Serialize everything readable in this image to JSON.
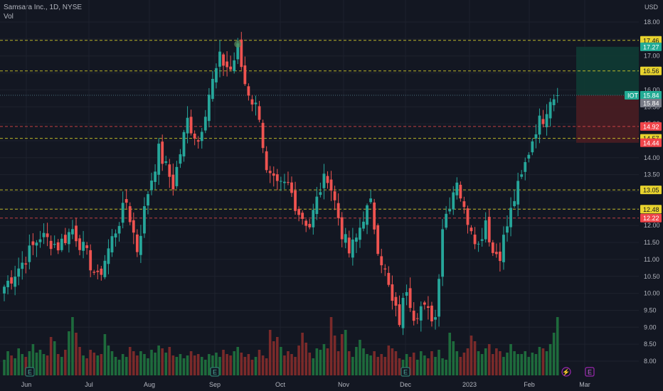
{
  "header": {
    "title": "Samsara Inc., 1D, NYSE",
    "vol_label": "Vol",
    "currency": "USD"
  },
  "colors": {
    "background": "#131722",
    "up": "#26a69a",
    "down": "#ef5350",
    "vol_up": "#1e6b3c",
    "vol_down": "#7a2a2a",
    "level_yellow": "#d8d028",
    "level_red": "#e04848",
    "tag_yellow": "#e8d32e",
    "tag_red": "#f0454a",
    "tag_green": "#22ab94",
    "tag_gray": "#787b86",
    "target_zone": "#0f3b34",
    "stop_zone": "#4a1d22"
  },
  "chart_data": {
    "type": "candlestick",
    "title": "Samsara Inc., 1D, NYSE",
    "symbol": "IOT",
    "last_price": 15.84,
    "ylim": [
      7.8,
      18.35
    ],
    "y_ticks": [
      "18.00",
      "17.50",
      "17.00",
      "16.50",
      "16.00",
      "15.50",
      "15.00",
      "14.50",
      "14.00",
      "13.50",
      "13.00",
      "12.50",
      "12.00",
      "11.50",
      "11.00",
      "10.50",
      "10.00",
      "9.50",
      "9.00",
      "8.50",
      "8.00"
    ],
    "x_ticks": [
      "Jun",
      "Jul",
      "Aug",
      "Sep",
      "Oct",
      "Nov",
      "Dec",
      "2023",
      "Feb",
      "Mar"
    ],
    "horizontal_levels": [
      {
        "value": 17.46,
        "label": "17.46",
        "style": "yellow"
      },
      {
        "value": 16.56,
        "label": "16.56",
        "style": "yellow"
      },
      {
        "value": 14.92,
        "label": "14.92",
        "style": "red"
      },
      {
        "value": 14.57,
        "label": "14.57",
        "style": "yellow"
      },
      {
        "value": 13.05,
        "label": "13.05",
        "style": "yellow"
      },
      {
        "value": 12.48,
        "label": "12.48",
        "style": "yellow"
      },
      {
        "value": 12.22,
        "label": "12.22",
        "style": "red"
      }
    ],
    "price_tags": [
      {
        "value": 17.27,
        "label": "17.27",
        "style": "green"
      },
      {
        "value": 15.84,
        "label": "15.84",
        "style": "green",
        "prefix": "IOT"
      },
      {
        "value": 15.84,
        "label": "15.84",
        "style": "gray"
      },
      {
        "value": 14.44,
        "label": "14.44",
        "style": "red"
      }
    ],
    "position": {
      "entry": 15.84,
      "target": 17.27,
      "stop": 14.44
    },
    "control_points": [
      [
        0,
        10.2
      ],
      [
        5,
        10.9
      ],
      [
        10,
        11.7
      ],
      [
        15,
        11.4
      ],
      [
        19,
        11.9
      ],
      [
        23,
        11.1
      ],
      [
        26,
        10.4
      ],
      [
        30,
        11.6
      ],
      [
        34,
        12.7
      ],
      [
        37,
        11.3
      ],
      [
        40,
        13.0
      ],
      [
        43,
        14.2
      ],
      [
        47,
        13.2
      ],
      [
        51,
        15.1
      ],
      [
        54,
        14.5
      ],
      [
        57,
        15.9
      ],
      [
        60,
        16.9
      ],
      [
        63,
        16.6
      ],
      [
        65,
        17.2
      ],
      [
        67,
        16.2
      ],
      [
        69,
        15.7
      ],
      [
        71,
        15.3
      ],
      [
        73,
        13.5
      ],
      [
        76,
        13.1
      ],
      [
        79,
        13.2
      ],
      [
        82,
        12.4
      ],
      [
        85,
        12.0
      ],
      [
        88,
        13.1
      ],
      [
        90,
        13.5
      ],
      [
        92,
        12.7
      ],
      [
        94,
        11.8
      ],
      [
        96,
        11.2
      ],
      [
        98,
        11.6
      ],
      [
        100,
        12.3
      ],
      [
        102,
        12.6
      ],
      [
        104,
        11.4
      ],
      [
        106,
        10.6
      ],
      [
        108,
        9.7
      ],
      [
        110,
        9.2
      ],
      [
        112,
        10.2
      ],
      [
        114,
        9.4
      ],
      [
        116,
        9.6
      ],
      [
        118,
        9.4
      ],
      [
        120,
        9.3
      ],
      [
        122,
        12.0
      ],
      [
        124,
        12.7
      ],
      [
        126,
        13.4
      ],
      [
        128,
        12.4
      ],
      [
        130,
        12.0
      ],
      [
        132,
        11.4
      ],
      [
        134,
        12.2
      ],
      [
        136,
        11.2
      ],
      [
        138,
        11.2
      ],
      [
        140,
        12.0
      ],
      [
        142,
        12.8
      ],
      [
        144,
        13.4
      ],
      [
        146,
        14.2
      ],
      [
        148,
        14.9
      ],
      [
        150,
        15.2
      ],
      [
        152,
        15.8
      ],
      [
        154,
        15.84
      ]
    ],
    "volume_heights": [
      22,
      34,
      28,
      24,
      38,
      30,
      26,
      34,
      44,
      32,
      36,
      30,
      28,
      54,
      48,
      30,
      26,
      36,
      62,
      82,
      60,
      40,
      28,
      24,
      36,
      32,
      28,
      30,
      58,
      42,
      34,
      26,
      22,
      30,
      26,
      40,
      34,
      28,
      34,
      30,
      24,
      36,
      32,
      42,
      38,
      32,
      40,
      28,
      26,
      30,
      24,
      28,
      34,
      28,
      30,
      26,
      22,
      30,
      28,
      32,
      26,
      36,
      30,
      28,
      34,
      40,
      32,
      26,
      30,
      22,
      26,
      36,
      28,
      24,
      64,
      48,
      54,
      40,
      28,
      34,
      30,
      26,
      42,
      60,
      46,
      32,
      24,
      38,
      36,
      44,
      38,
      82,
      56,
      34,
      58,
      64,
      34,
      26,
      40,
      50,
      38,
      30,
      28,
      34,
      26,
      30,
      26,
      42,
      38,
      34,
      24,
      22,
      30,
      26,
      32,
      22,
      34,
      28,
      24,
      34,
      26,
      36,
      24,
      22,
      60,
      48,
      34,
      26,
      32,
      38,
      56,
      48,
      34,
      30,
      38,
      44,
      30,
      38,
      34,
      26,
      32,
      44,
      34,
      30,
      30,
      34,
      26,
      32,
      30,
      40,
      38,
      34,
      44,
      60,
      82
    ]
  },
  "toolbar_badges": [
    {
      "id": "e1",
      "label": "E"
    },
    {
      "id": "e2",
      "label": "E"
    },
    {
      "id": "e3",
      "label": "E"
    },
    {
      "id": "lightning",
      "label": "⚡"
    },
    {
      "id": "e4",
      "label": "E"
    }
  ]
}
